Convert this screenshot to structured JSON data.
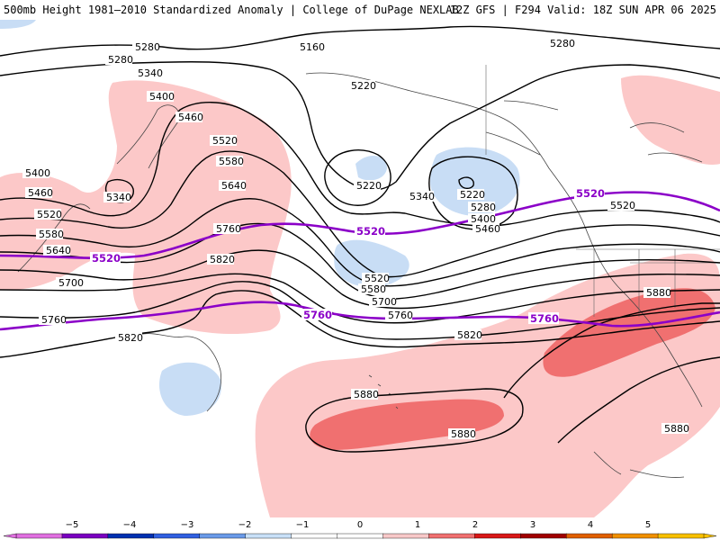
{
  "header": {
    "title_left": "500mb Height 1981–2010 Standardized Anomaly | College of DuPage NEXLAB",
    "title_right": "12Z GFS | F294 Valid: 18Z SUN APR 06 2025"
  },
  "contour_labels": [
    "5160",
    "5220",
    "5280",
    "5340",
    "5400",
    "5460",
    "5520",
    "5580",
    "5640",
    "5700",
    "5760",
    "5820",
    "5880"
  ],
  "climatology_labels": [
    "5520",
    "5760"
  ],
  "colorbar": {
    "ticks": [
      "−5",
      "−4",
      "−3",
      "−2",
      "−1",
      "0",
      "1",
      "2",
      "3",
      "4",
      "5"
    ],
    "colors": [
      "#e070e0",
      "#7a00c0",
      "#0030b0",
      "#3060e0",
      "#6a9ae8",
      "#c8e0f8",
      "#ffffff",
      "#ffffff",
      "#f8c8c8",
      "#f07070",
      "#d81818",
      "#a00000",
      "#e06000",
      "#f09000",
      "#f8c000"
    ]
  },
  "anomaly_colors": {
    "positive_1": "#fcc8c8",
    "positive_2": "#f07070",
    "negative_1": "#c8ddf5"
  }
}
